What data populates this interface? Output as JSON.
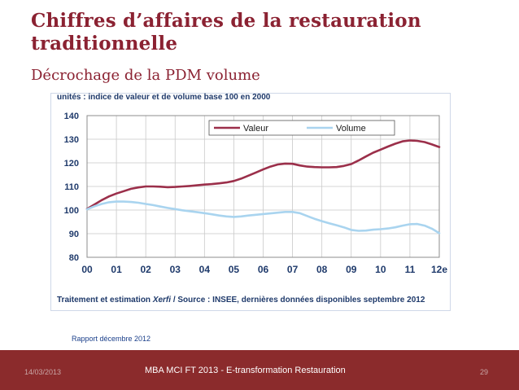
{
  "slide": {
    "title": "Chiffres d’affaires de la restauration traditionnelle",
    "subtitle": "Décrochage de la PDM volume",
    "report_note": "Rapport décembre 2012"
  },
  "footer": {
    "date": "14/03/2013",
    "center": "MBA MCI FT 2013 - E-transformation Restauration",
    "page": "29"
  },
  "chart_data": {
    "type": "line",
    "units_label": "unités : indice de valeur et de volume base 100 en 2000",
    "source_prefix": "Traitement et estimation ",
    "source_brand": "Xerfi",
    "source_suffix": " / Source : INSEE, dernières données disponibles septembre 2012",
    "categories": [
      "00",
      "01",
      "02",
      "03",
      "04",
      "05",
      "06",
      "07",
      "08",
      "09",
      "10",
      "11",
      "12e"
    ],
    "ylim": [
      80,
      140
    ],
    "yticks": [
      80,
      90,
      100,
      110,
      120,
      130,
      140
    ],
    "grid": true,
    "legend_position": "top-right",
    "series": [
      {
        "name": "Valeur",
        "color": "#9b2f4a",
        "x": [
          0,
          0.25,
          0.5,
          0.75,
          1,
          1.25,
          1.5,
          1.75,
          2,
          2.25,
          2.5,
          2.75,
          3,
          3.25,
          3.5,
          3.75,
          4,
          4.25,
          4.5,
          4.75,
          5,
          5.25,
          5.5,
          5.75,
          6,
          6.25,
          6.5,
          6.75,
          7,
          7.25,
          7.5,
          7.75,
          8,
          8.25,
          8.5,
          8.75,
          9,
          9.25,
          9.5,
          9.75,
          10,
          10.25,
          10.5,
          10.75,
          11,
          11.25,
          11.5,
          11.75,
          12
        ],
        "values": [
          100.5,
          102.3,
          104.2,
          105.8,
          107,
          108,
          109,
          109.6,
          110,
          110,
          109.9,
          109.7,
          109.8,
          110,
          110.2,
          110.5,
          110.8,
          111,
          111.3,
          111.7,
          112.3,
          113.3,
          114.6,
          115.9,
          117.2,
          118.4,
          119.3,
          119.7,
          119.6,
          118.9,
          118.4,
          118.2,
          118.1,
          118.1,
          118.2,
          118.7,
          119.5,
          121,
          122.7,
          124.3,
          125.6,
          126.9,
          128.1,
          129.1,
          129.5,
          129.3,
          128.8,
          127.8,
          126.7
        ]
      },
      {
        "name": "Volume",
        "color": "#a9d4ef",
        "x": [
          0,
          0.25,
          0.5,
          0.75,
          1,
          1.25,
          1.5,
          1.75,
          2,
          2.25,
          2.5,
          2.75,
          3,
          3.25,
          3.5,
          3.75,
          4,
          4.25,
          4.5,
          4.75,
          5,
          5.25,
          5.5,
          5.75,
          6,
          6.25,
          6.5,
          6.75,
          7,
          7.25,
          7.5,
          7.75,
          8,
          8.25,
          8.5,
          8.75,
          9,
          9.25,
          9.5,
          9.75,
          10,
          10.25,
          10.5,
          10.75,
          11,
          11.25,
          11.5,
          11.75,
          12
        ],
        "values": [
          100.3,
          101.6,
          102.6,
          103.3,
          103.6,
          103.6,
          103.4,
          103.1,
          102.6,
          102.1,
          101.5,
          100.9,
          100.4,
          99.9,
          99.5,
          99.1,
          98.7,
          98.2,
          97.7,
          97.3,
          97.1,
          97.3,
          97.7,
          98,
          98.3,
          98.6,
          98.9,
          99.2,
          99.2,
          98.7,
          97.5,
          96.3,
          95.3,
          94.4,
          93.6,
          92.7,
          91.6,
          91.2,
          91.3,
          91.7,
          91.9,
          92.2,
          92.7,
          93.4,
          94,
          94.1,
          93.4,
          92.1,
          90.2
        ]
      }
    ]
  }
}
